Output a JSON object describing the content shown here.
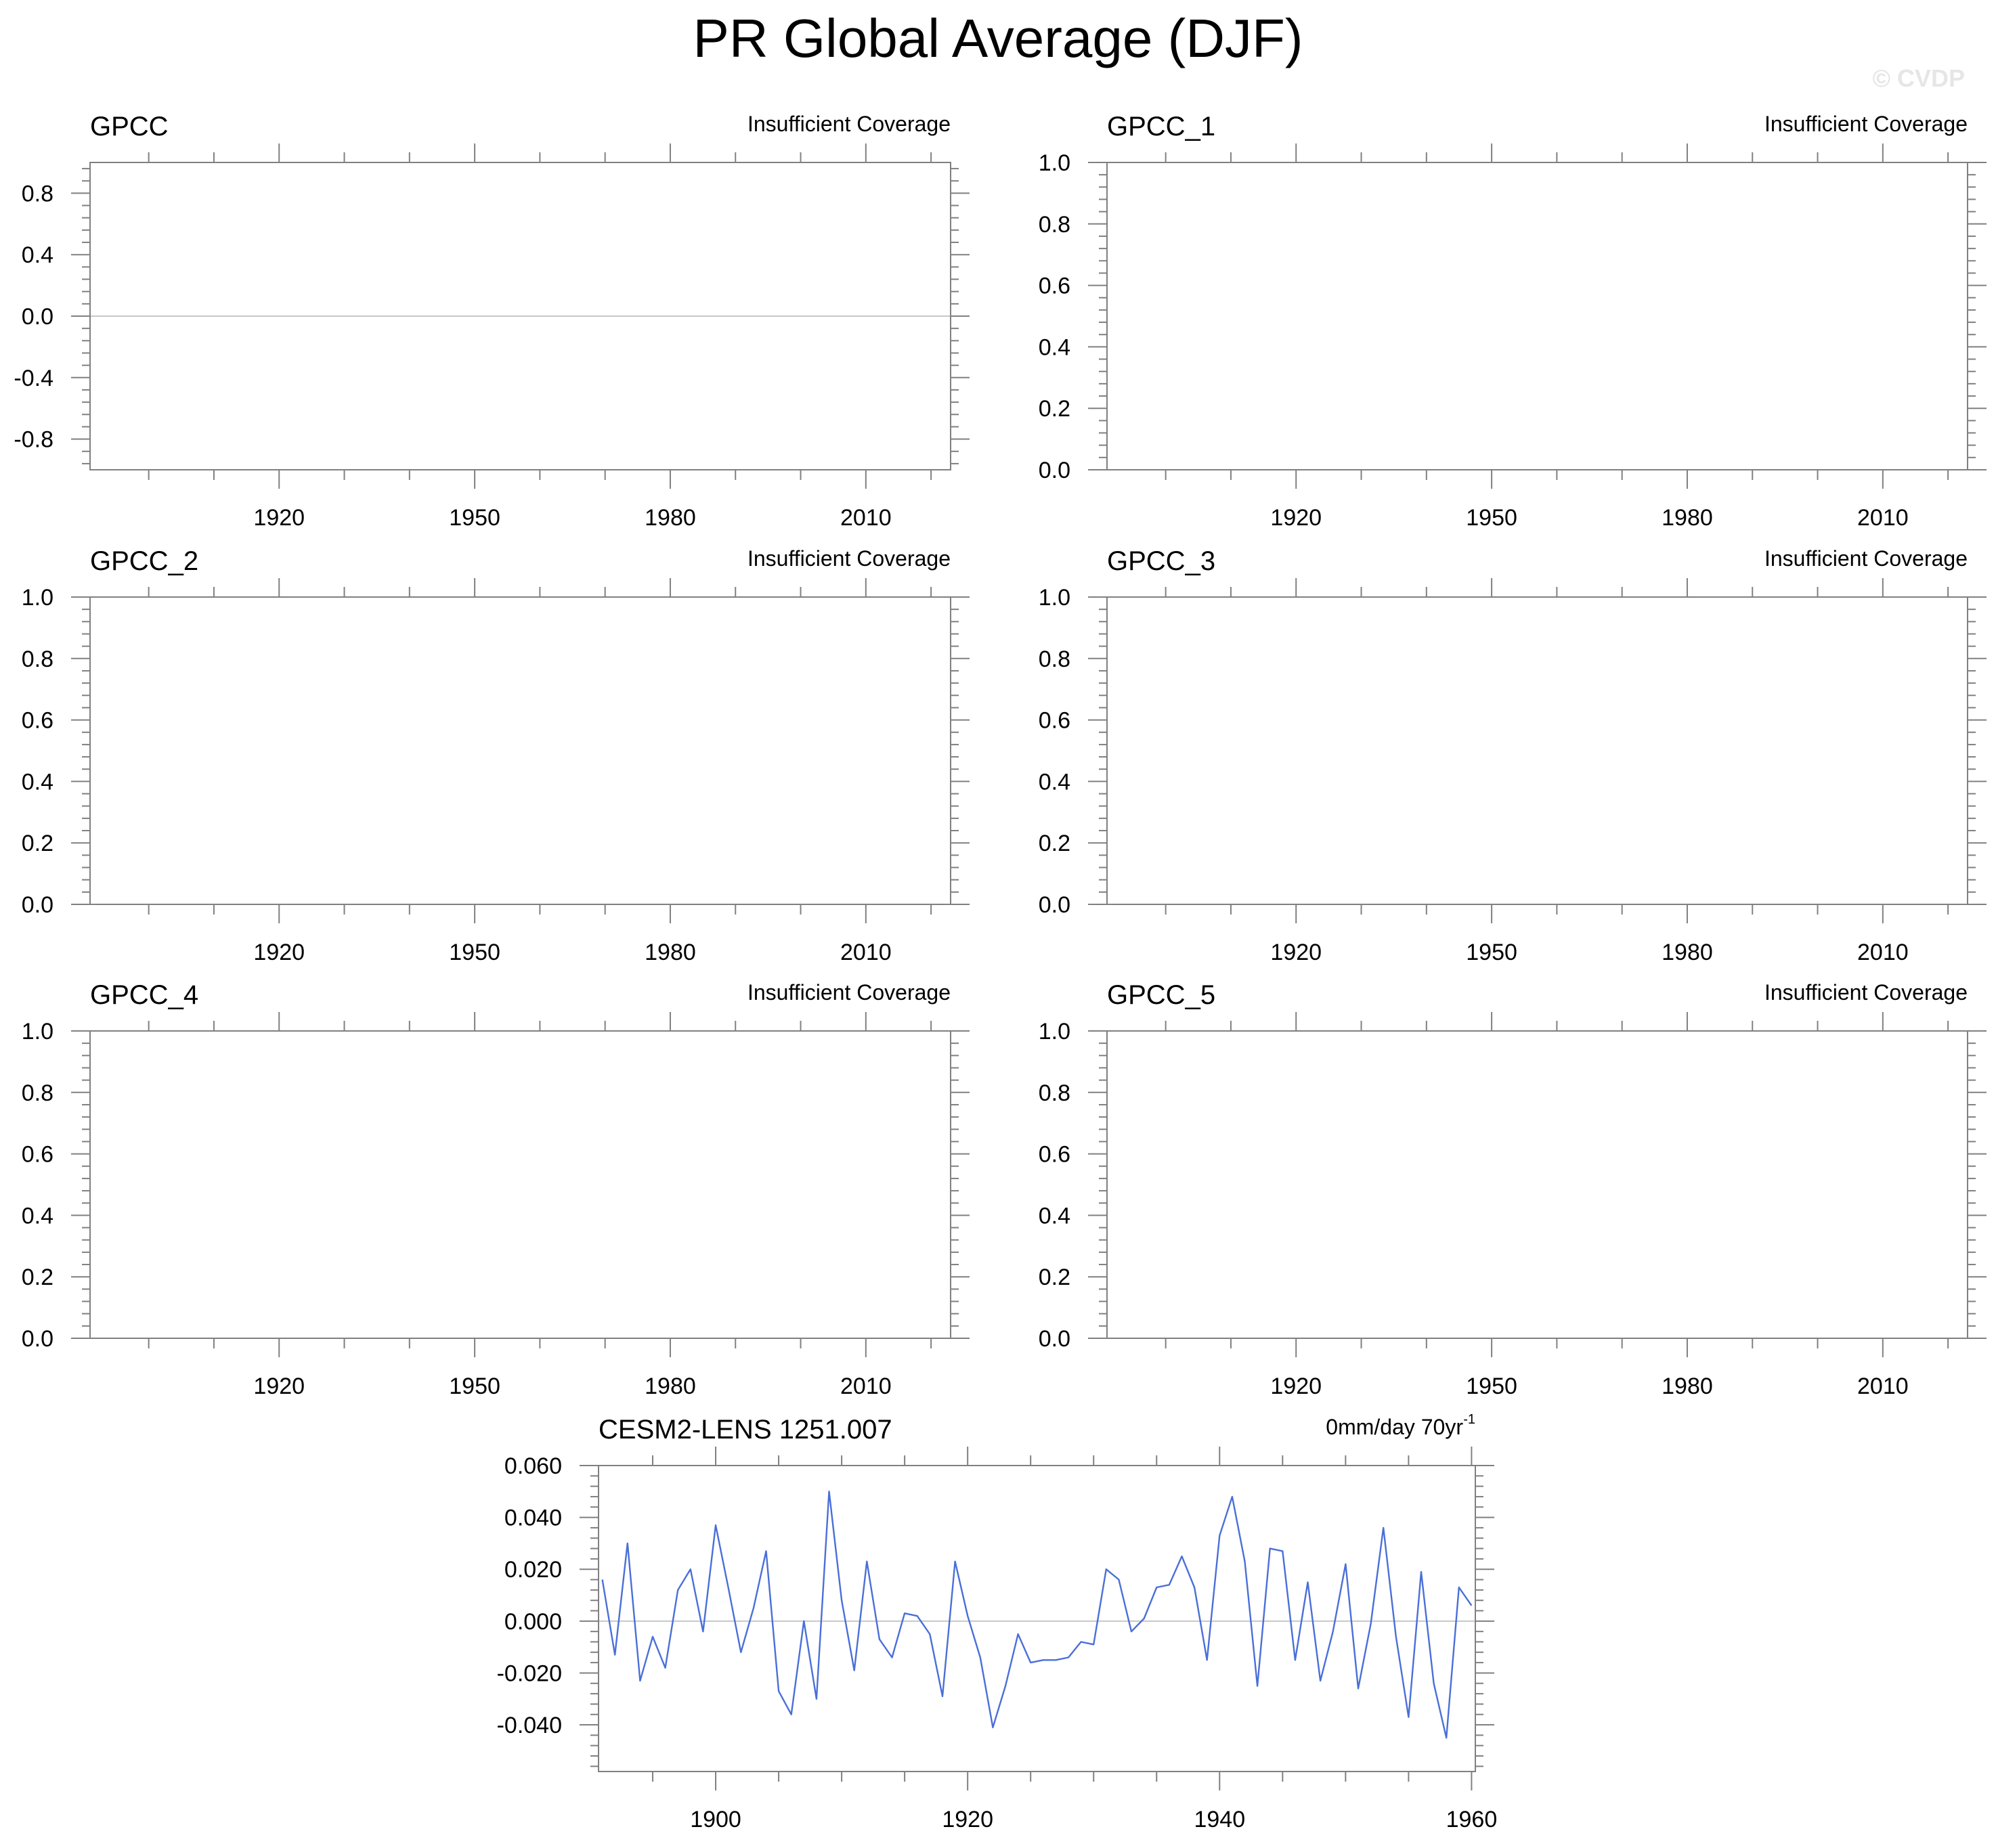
{
  "figure": {
    "title": "PR Global Average (DJF)",
    "watermark": "© CVDP"
  },
  "colors": {
    "axis": "#000000",
    "tick": "#808080",
    "zero_line": "#c8c8c8",
    "series": "#4a6fd8"
  },
  "chart_data": [
    {
      "type": "line",
      "title": "GPCC",
      "annotation": "Insufficient Coverage",
      "xlim": [
        1891,
        2023
      ],
      "ylim": [
        -1,
        1
      ],
      "xticks": [
        1920,
        1950,
        1980,
        2010
      ],
      "xtick_labels": [
        "1920",
        "1950",
        "1980",
        "2010"
      ],
      "yticks": [
        0.8,
        0.4,
        0.0,
        -0.4,
        -0.8
      ],
      "ytick_labels": [
        "0.8",
        "0.4",
        "0.0",
        "-0.4",
        "-0.8"
      ],
      "zero_line": true,
      "series": []
    },
    {
      "type": "line",
      "title": "GPCC_1",
      "annotation": "Insufficient Coverage",
      "xlim": [
        1891,
        2023
      ],
      "ylim": [
        0,
        1
      ],
      "xticks": [
        1920,
        1950,
        1980,
        2010
      ],
      "xtick_labels": [
        "1920",
        "1950",
        "1980",
        "2010"
      ],
      "yticks": [
        1.0,
        0.8,
        0.6,
        0.4,
        0.2,
        0.0
      ],
      "ytick_labels": [
        "1.0",
        "0.8",
        "0.6",
        "0.4",
        "0.2",
        "0.0"
      ],
      "zero_line": false,
      "series": []
    },
    {
      "type": "line",
      "title": "GPCC_2",
      "annotation": "Insufficient Coverage",
      "xlim": [
        1891,
        2023
      ],
      "ylim": [
        0,
        1
      ],
      "xticks": [
        1920,
        1950,
        1980,
        2010
      ],
      "xtick_labels": [
        "1920",
        "1950",
        "1980",
        "2010"
      ],
      "yticks": [
        1.0,
        0.8,
        0.6,
        0.4,
        0.2,
        0.0
      ],
      "ytick_labels": [
        "1.0",
        "0.8",
        "0.6",
        "0.4",
        "0.2",
        "0.0"
      ],
      "zero_line": false,
      "series": []
    },
    {
      "type": "line",
      "title": "GPCC_3",
      "annotation": "Insufficient Coverage",
      "xlim": [
        1891,
        2023
      ],
      "ylim": [
        0,
        1
      ],
      "xticks": [
        1920,
        1950,
        1980,
        2010
      ],
      "xtick_labels": [
        "1920",
        "1950",
        "1980",
        "2010"
      ],
      "yticks": [
        1.0,
        0.8,
        0.6,
        0.4,
        0.2,
        0.0
      ],
      "ytick_labels": [
        "1.0",
        "0.8",
        "0.6",
        "0.4",
        "0.2",
        "0.0"
      ],
      "zero_line": false,
      "series": []
    },
    {
      "type": "line",
      "title": "GPCC_4",
      "annotation": "Insufficient Coverage",
      "xlim": [
        1891,
        2023
      ],
      "ylim": [
        0,
        1
      ],
      "xticks": [
        1920,
        1950,
        1980,
        2010
      ],
      "xtick_labels": [
        "1920",
        "1950",
        "1980",
        "2010"
      ],
      "yticks": [
        1.0,
        0.8,
        0.6,
        0.4,
        0.2,
        0.0
      ],
      "ytick_labels": [
        "1.0",
        "0.8",
        "0.6",
        "0.4",
        "0.2",
        "0.0"
      ],
      "zero_line": false,
      "series": []
    },
    {
      "type": "line",
      "title": "GPCC_5",
      "annotation": "Insufficient Coverage",
      "xlim": [
        1891,
        2023
      ],
      "ylim": [
        0,
        1
      ],
      "xticks": [
        1920,
        1950,
        1980,
        2010
      ],
      "xtick_labels": [
        "1920",
        "1950",
        "1980",
        "2010"
      ],
      "yticks": [
        1.0,
        0.8,
        0.6,
        0.4,
        0.2,
        0.0
      ],
      "ytick_labels": [
        "1.0",
        "0.8",
        "0.6",
        "0.4",
        "0.2",
        "0.0"
      ],
      "zero_line": false,
      "series": []
    },
    {
      "type": "line",
      "title": "CESM2-LENS 1251.007",
      "annotation": "0mm/day 70yr",
      "annotation_sup": "-1",
      "xlim": [
        1890.7,
        1960.3
      ],
      "ylim": [
        -0.058,
        0.06
      ],
      "xticks": [
        1900,
        1920,
        1940,
        1960
      ],
      "xtick_labels": [
        "1900",
        "1920",
        "1940",
        "1960"
      ],
      "yticks": [
        0.06,
        0.04,
        0.02,
        0.0,
        -0.02,
        -0.04
      ],
      "ytick_labels": [
        "0.060",
        "0.040",
        "0.020",
        "0.000",
        "-0.020",
        "-0.040"
      ],
      "zero_line": true,
      "series": [
        {
          "name": "CESM2-LENS 1251.007",
          "x": [
            1891,
            1892,
            1893,
            1894,
            1895,
            1896,
            1897,
            1898,
            1899,
            1900,
            1901,
            1902,
            1903,
            1904,
            1905,
            1906,
            1907,
            1908,
            1909,
            1910,
            1911,
            1912,
            1913,
            1914,
            1915,
            1916,
            1917,
            1918,
            1919,
            1920,
            1921,
            1922,
            1923,
            1924,
            1925,
            1926,
            1927,
            1928,
            1929,
            1930,
            1931,
            1932,
            1933,
            1934,
            1935,
            1936,
            1937,
            1938,
            1939,
            1940,
            1941,
            1942,
            1943,
            1944,
            1945,
            1946,
            1947,
            1948,
            1949,
            1950,
            1951,
            1952,
            1953,
            1954,
            1955,
            1956,
            1957,
            1958,
            1959,
            1960
          ],
          "y": [
            0.016,
            -0.013,
            0.03,
            -0.023,
            -0.006,
            -0.018,
            0.012,
            0.02,
            -0.004,
            0.037,
            0.013,
            -0.012,
            0.005,
            0.027,
            -0.027,
            -0.036,
            0.0,
            -0.03,
            0.05,
            0.008,
            -0.019,
            0.023,
            -0.007,
            -0.014,
            0.003,
            0.002,
            -0.005,
            -0.029,
            0.023,
            0.002,
            -0.014,
            -0.041,
            -0.025,
            -0.005,
            -0.016,
            -0.015,
            -0.015,
            -0.014,
            -0.008,
            -0.009,
            0.02,
            0.016,
            -0.004,
            0.001,
            0.013,
            0.014,
            0.025,
            0.013,
            -0.015,
            0.033,
            0.048,
            0.023,
            -0.025,
            0.028,
            0.027,
            -0.015,
            0.015,
            -0.023,
            -0.004,
            0.022,
            -0.026,
            -0.001,
            0.036,
            -0.006,
            -0.037,
            0.019,
            -0.024,
            -0.045,
            0.013,
            0.006
          ]
        }
      ]
    }
  ]
}
